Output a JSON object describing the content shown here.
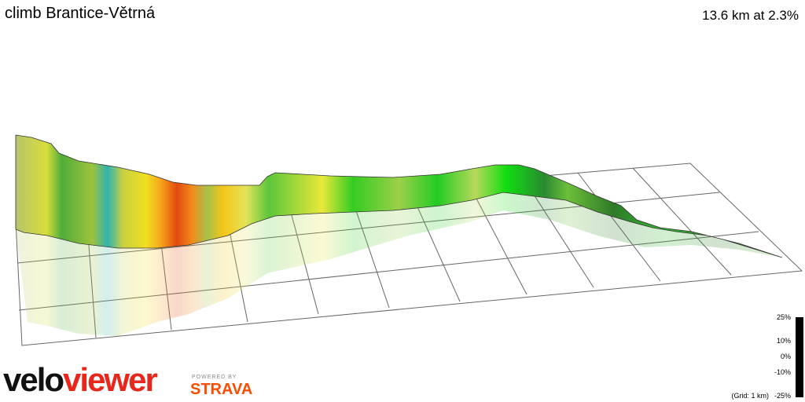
{
  "header": {
    "title": "climb Brantice-Větrná",
    "stats": "13.6 km at 2.3%"
  },
  "legend": {
    "labels": [
      "25%",
      "10%",
      "0%",
      "-10%",
      "-25%"
    ],
    "grid_note": "(Grid: 1 km)"
  },
  "branding": {
    "logo_dark": "velo",
    "logo_red": "viewer",
    "powered_by": "POWERED BY",
    "partner": "STRAVA"
  }
}
